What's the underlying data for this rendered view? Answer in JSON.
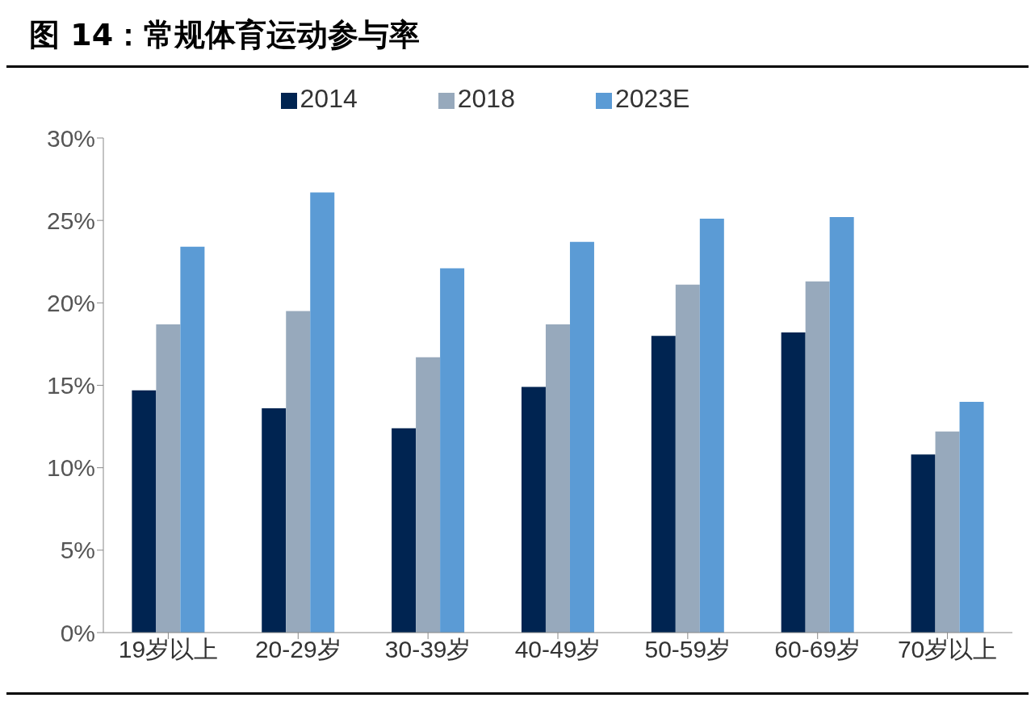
{
  "chart_data": {
    "type": "bar",
    "title": "图 14：常规体育运动参与率",
    "categories": [
      "19岁以上",
      "20-29岁",
      "30-39岁",
      "40-49岁",
      "50-59岁",
      "60-69岁",
      "70岁以上"
    ],
    "series": [
      {
        "name": "2014",
        "color": "#002451",
        "values": [
          14.7,
          13.6,
          12.4,
          14.9,
          18.0,
          18.2,
          10.8
        ]
      },
      {
        "name": "2018",
        "color": "#97a9bc",
        "values": [
          18.7,
          19.5,
          16.7,
          18.7,
          21.1,
          21.3,
          12.2
        ]
      },
      {
        "name": "2023E",
        "color": "#5b9bd5",
        "values": [
          23.4,
          26.7,
          22.1,
          23.7,
          25.1,
          25.2,
          14.0
        ]
      }
    ],
    "ylim": [
      0,
      30
    ],
    "yticks": [
      {
        "value": 0,
        "label": "0%"
      },
      {
        "value": 5,
        "label": "5%"
      },
      {
        "value": 10,
        "label": "10%"
      },
      {
        "value": 15,
        "label": "15%"
      },
      {
        "value": 20,
        "label": "20%"
      },
      {
        "value": 25,
        "label": "25%"
      },
      {
        "value": 30,
        "label": "30%"
      }
    ],
    "grid": false,
    "legend": "top"
  }
}
